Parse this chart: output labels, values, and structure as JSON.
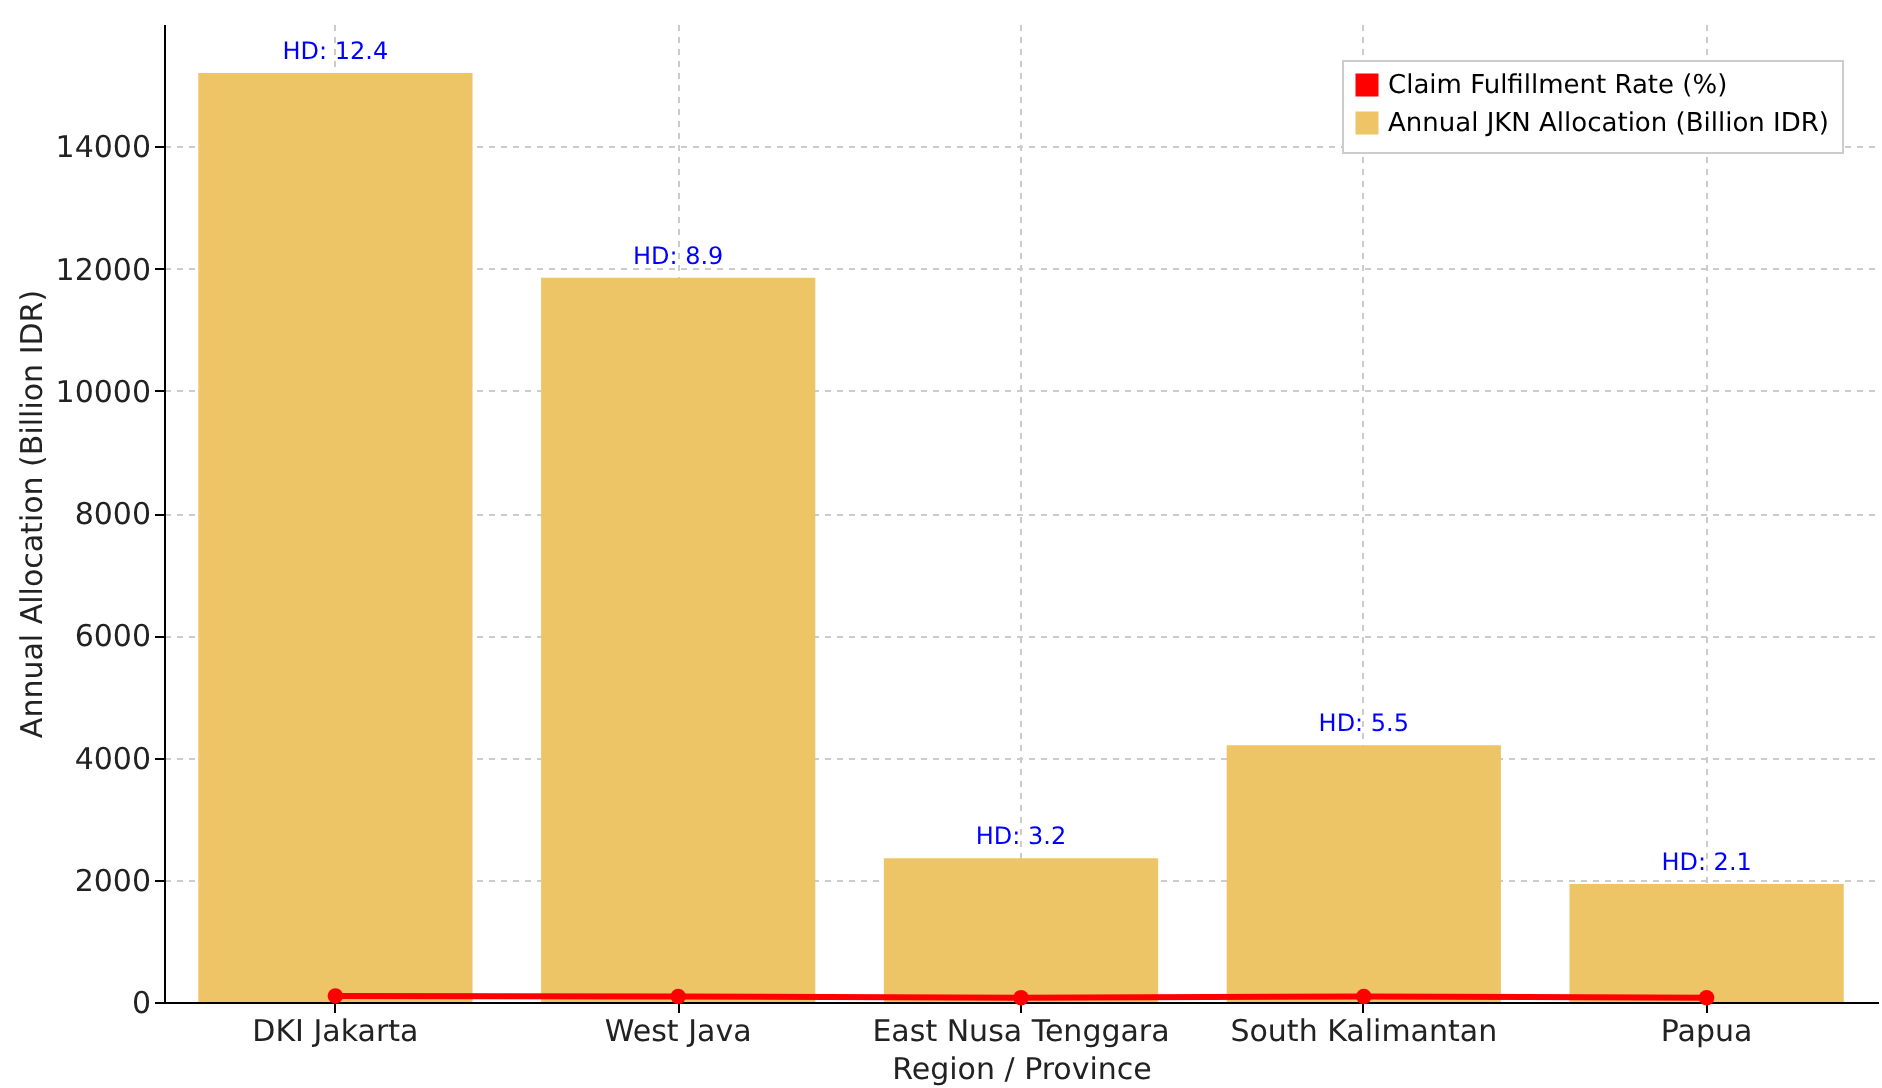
{
  "chart_data": {
    "type": "bar",
    "xlabel": "Region / Province",
    "ylabel": "Annual Allocation (Billion IDR)",
    "categories": [
      "DKI Jakarta",
      "West Java",
      "East Nusa Tenggara",
      "South Kalimantan",
      "Papua"
    ],
    "series": [
      {
        "name": "Claim Fulfillment Rate (%)",
        "type": "line",
        "color": "#ff0000",
        "values": [
          100,
          90,
          70,
          90,
          70
        ]
      },
      {
        "name": "Annual JKN Allocation (Billion IDR)",
        "color": "#edc466",
        "values": [
          15200,
          11850,
          2350,
          4200,
          1930
        ]
      }
    ],
    "ylim": [
      0,
      16000
    ],
    "yticks": [
      0,
      2000,
      4000,
      6000,
      8000,
      10000,
      12000,
      14000
    ],
    "annotations": [
      {
        "text": "HD: 12.4",
        "x": "DKI Jakarta",
        "y": 15200
      },
      {
        "text": "HD: 8.9",
        "x": "West Java",
        "y": 11850
      },
      {
        "text": "HD: 3.2",
        "x": "East Nusa Tenggara",
        "y": 2350
      },
      {
        "text": "HD: 5.5",
        "x": "South Kalimantan",
        "y": 4200
      },
      {
        "text": "HD: 2.1",
        "x": "Papua",
        "y": 1930
      }
    ],
    "grid": true,
    "legend": "top right",
    "marker": "circle"
  }
}
